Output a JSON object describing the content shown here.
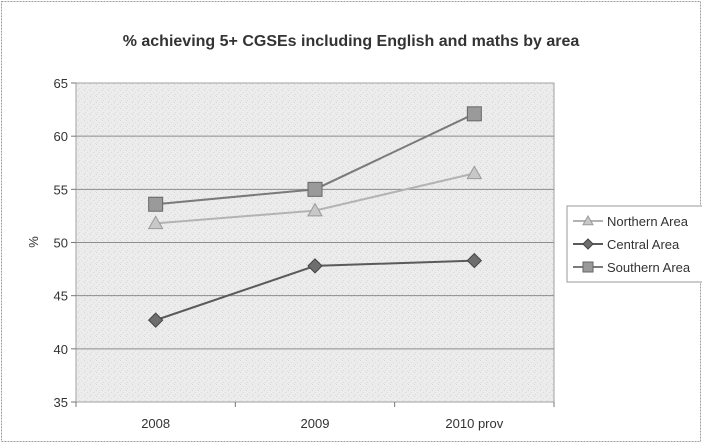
{
  "chart_data": {
    "type": "line",
    "title": "% achieving 5+ CGSEs including English and maths by area",
    "xlabel": "",
    "ylabel": "%",
    "categories": [
      "2008",
      "2009",
      "2010 prov"
    ],
    "ylim": [
      35,
      65
    ],
    "yticks": [
      35,
      40,
      45,
      50,
      55,
      60,
      65
    ],
    "grid": true,
    "legend_position": "right",
    "series": [
      {
        "name": "Northern Area",
        "values": [
          51.8,
          53.0,
          56.5
        ],
        "marker": "triangle",
        "color": "#b3b3b3",
        "marker_color": "#c8c8c8"
      },
      {
        "name": "Central Area",
        "values": [
          42.7,
          47.8,
          48.3
        ],
        "marker": "diamond",
        "color": "#5a5a5a",
        "marker_color": "#6e6e6e"
      },
      {
        "name": "Southern Area",
        "values": [
          53.6,
          55.0,
          62.1
        ],
        "marker": "square",
        "color": "#7a7a7a",
        "marker_color": "#9a9a9a"
      }
    ]
  }
}
